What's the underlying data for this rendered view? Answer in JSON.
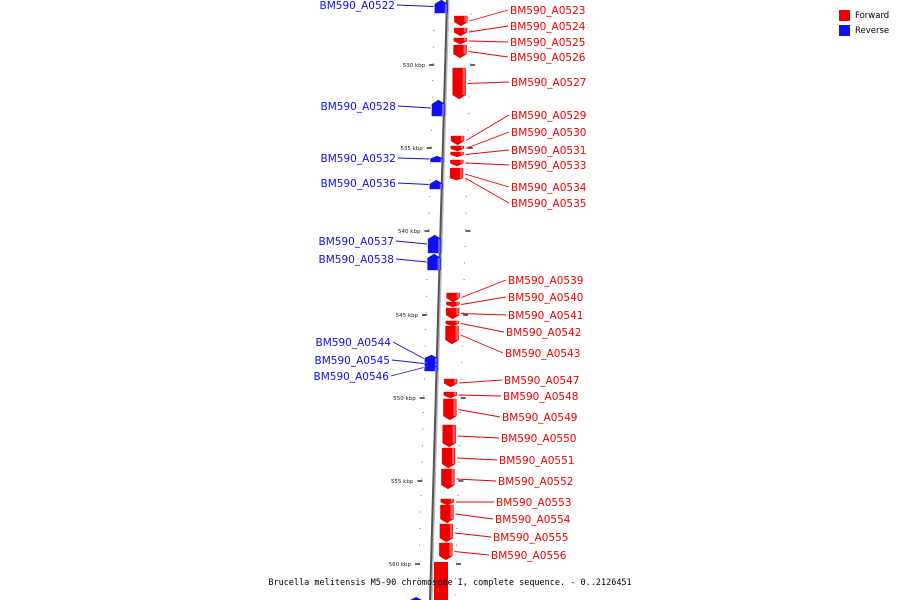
{
  "title": "Brucella melitensis M5-90 chromosome I, complete sequence. - 0..2126451",
  "legend": [
    {
      "label": "Forward",
      "color": "#ee0000"
    },
    {
      "label": "Reverse",
      "color": "#1010ee"
    }
  ],
  "ticks": [
    "530 kbp",
    "535 kbp",
    "540 kbp",
    "545 kbp",
    "550 kbp",
    "555 kbp",
    "560 kbp"
  ],
  "genes": [
    {
      "name": "BM590_A0522",
      "strand": "reverse"
    },
    {
      "name": "BM590_A0523",
      "strand": "forward"
    },
    {
      "name": "BM590_A0524",
      "strand": "forward"
    },
    {
      "name": "BM590_A0525",
      "strand": "forward"
    },
    {
      "name": "BM590_A0526",
      "strand": "forward"
    },
    {
      "name": "BM590_A0527",
      "strand": "forward"
    },
    {
      "name": "BM590_A0528",
      "strand": "reverse"
    },
    {
      "name": "BM590_A0529",
      "strand": "forward"
    },
    {
      "name": "BM590_A0530",
      "strand": "forward"
    },
    {
      "name": "BM590_A0531",
      "strand": "forward"
    },
    {
      "name": "BM590_A0532",
      "strand": "reverse"
    },
    {
      "name": "BM590_A0533",
      "strand": "forward"
    },
    {
      "name": "BM590_A0534",
      "strand": "forward"
    },
    {
      "name": "BM590_A0535",
      "strand": "forward"
    },
    {
      "name": "BM590_A0536",
      "strand": "reverse"
    },
    {
      "name": "BM590_A0537",
      "strand": "reverse"
    },
    {
      "name": "BM590_A0538",
      "strand": "reverse"
    },
    {
      "name": "BM590_A0539",
      "strand": "forward"
    },
    {
      "name": "BM590_A0540",
      "strand": "forward"
    },
    {
      "name": "BM590_A0541",
      "strand": "forward"
    },
    {
      "name": "BM590_A0542",
      "strand": "forward"
    },
    {
      "name": "BM590_A0543",
      "strand": "forward"
    },
    {
      "name": "BM590_A0544",
      "strand": "reverse"
    },
    {
      "name": "BM590_A0545",
      "strand": "reverse"
    },
    {
      "name": "BM590_A0546",
      "strand": "reverse"
    },
    {
      "name": "BM590_A0547",
      "strand": "forward"
    },
    {
      "name": "BM590_A0548",
      "strand": "forward"
    },
    {
      "name": "BM590_A0549",
      "strand": "forward"
    },
    {
      "name": "BM590_A0550",
      "strand": "forward"
    },
    {
      "name": "BM590_A0551",
      "strand": "forward"
    },
    {
      "name": "BM590_A0552",
      "strand": "forward"
    },
    {
      "name": "BM590_A0553",
      "strand": "forward"
    },
    {
      "name": "BM590_A0554",
      "strand": "forward"
    },
    {
      "name": "BM590_A0555",
      "strand": "forward"
    },
    {
      "name": "BM590_A0556",
      "strand": "forward"
    }
  ]
}
